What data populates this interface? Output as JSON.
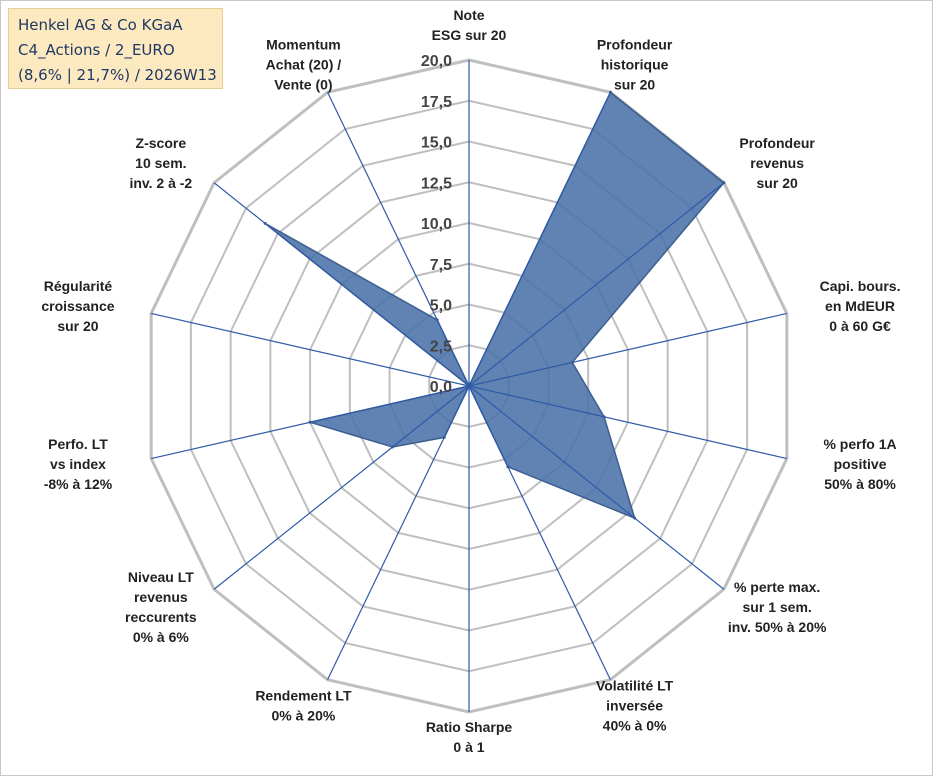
{
  "title_box": {
    "line1": "Henkel AG & Co KGaA",
    "line2": "C4_Actions / 2_EURO",
    "line3": "(8,6% | 21,7%) / 2026W13",
    "background": "#fde9bf"
  },
  "colors": {
    "fill": "#4a72a8",
    "stroke": "#3d5f8f",
    "spokes": "#2e5aa8",
    "grid": "#bfbfbf"
  },
  "chart_data": {
    "type": "radar",
    "rmin": 0,
    "rmax": 20,
    "ticks": [
      "0,0",
      "2,5",
      "5,0",
      "7,5",
      "10,0",
      "12,5",
      "15,0",
      "17,5",
      "20,0"
    ],
    "grid": true,
    "categories": [
      [
        "Note",
        "ESG sur 20"
      ],
      [
        "Profondeur",
        "historique",
        "sur 20"
      ],
      [
        "Profondeur",
        "revenus",
        "sur 20"
      ],
      [
        "Capi. bours.",
        "en MdEUR",
        "0 à 60 G€"
      ],
      [
        "% perfo 1A",
        "positive",
        "50% à 80%"
      ],
      [
        "% perte max.",
        "sur 1 sem.",
        "inv. 50% à 20%"
      ],
      [
        "Volatilité LT",
        "inversée",
        "40% à 0%"
      ],
      [
        "Ratio Sharpe",
        "0 à 1"
      ],
      [
        "Rendement LT",
        "0% à 20%"
      ],
      [
        "Niveau LT",
        "revenus",
        "reccurents",
        "0% à 6%"
      ],
      [
        "Perfo. LT",
        "vs index",
        "-8% à 12%"
      ],
      [
        "Régularité",
        "croissance",
        "sur 20"
      ],
      [
        "Z-score",
        "10 sem.",
        "inv. 2 à -2"
      ],
      [
        "Momentum",
        "Achat (20) /",
        "Vente (0)"
      ]
    ],
    "values": [
      0,
      20,
      20,
      6.5,
      8.5,
      13,
      5.5,
      0,
      3.5,
      6,
      10,
      0,
      16,
      4.5
    ]
  }
}
